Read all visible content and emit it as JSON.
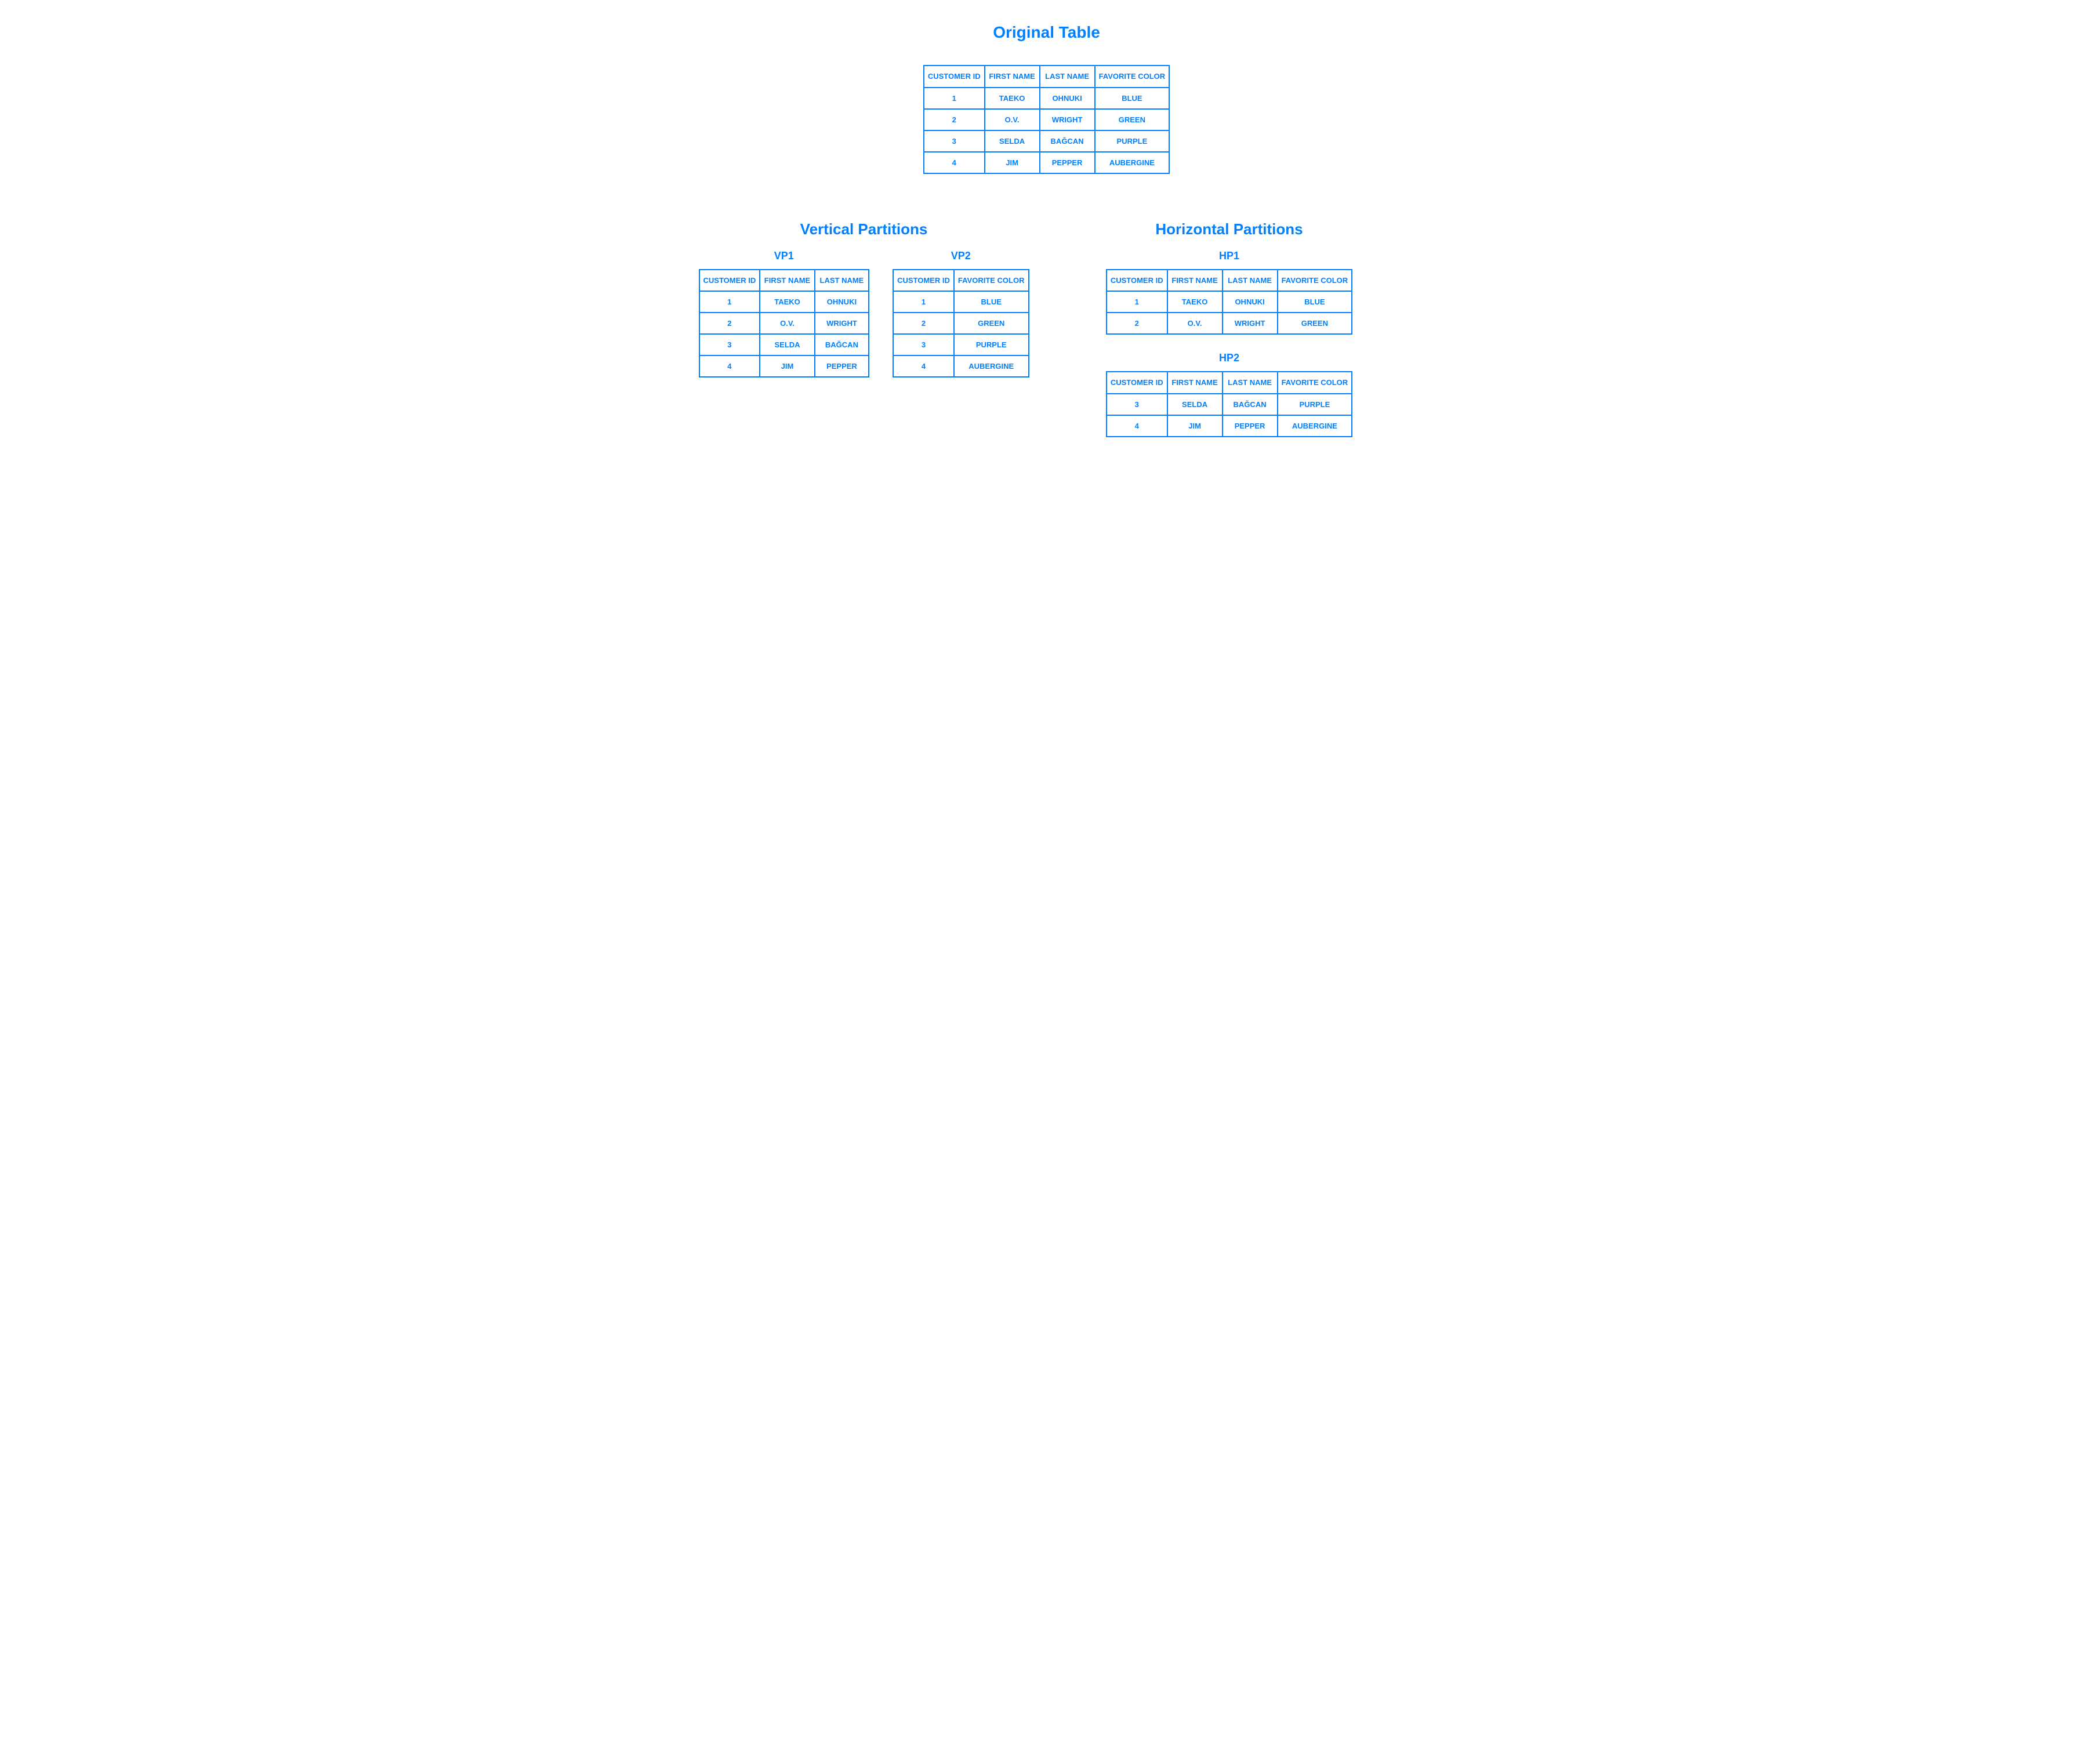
{
  "colors": {
    "accent": "#0080ff",
    "background": "#ffffff",
    "border": "#0080ff",
    "text": "#0080ff"
  },
  "typography": {
    "font_family": "Arial, Helvetica, sans-serif",
    "h1_fontsize": 28,
    "h2_fontsize": 26,
    "h3_fontsize": 18,
    "cell_fontsize": 13,
    "weight": "bold"
  },
  "layout": {
    "border_width": 2,
    "cell_padding": "8px 6px"
  },
  "titles": {
    "original": "Original Table",
    "vertical": "Vertical Partitions",
    "horizontal": "Horizontal Partitions",
    "vp1": "VP1",
    "vp2": "VP2",
    "hp1": "HP1",
    "hp2": "HP2"
  },
  "columns": {
    "customer_id": "CUSTOMER ID",
    "first_name": "FIRST NAME",
    "last_name": "LAST NAME",
    "favorite_color": "FAVORITE COLOR"
  },
  "original_table": {
    "type": "table",
    "columns": [
      "CUSTOMER ID",
      "FIRST NAME",
      "LAST NAME",
      "FAVORITE COLOR"
    ],
    "rows": [
      [
        "1",
        "TAEKO",
        "OHNUKI",
        "BLUE"
      ],
      [
        "2",
        "O.V.",
        "WRIGHT",
        "GREEN"
      ],
      [
        "3",
        "SELDA",
        "BAĞCAN",
        "PURPLE"
      ],
      [
        "4",
        "JIM",
        "PEPPER",
        "AUBERGINE"
      ]
    ]
  },
  "vp1": {
    "type": "table",
    "columns": [
      "CUSTOMER ID",
      "FIRST NAME",
      "LAST NAME"
    ],
    "rows": [
      [
        "1",
        "TAEKO",
        "OHNUKI"
      ],
      [
        "2",
        "O.V.",
        "WRIGHT"
      ],
      [
        "3",
        "SELDA",
        "BAĞCAN"
      ],
      [
        "4",
        "JIM",
        "PEPPER"
      ]
    ]
  },
  "vp2": {
    "type": "table",
    "columns": [
      "CUSTOMER ID",
      "FAVORITE COLOR"
    ],
    "rows": [
      [
        "1",
        "BLUE"
      ],
      [
        "2",
        "GREEN"
      ],
      [
        "3",
        "PURPLE"
      ],
      [
        "4",
        "AUBERGINE"
      ]
    ]
  },
  "hp1": {
    "type": "table",
    "columns": [
      "CUSTOMER ID",
      "FIRST NAME",
      "LAST NAME",
      "FAVORITE COLOR"
    ],
    "rows": [
      [
        "1",
        "TAEKO",
        "OHNUKI",
        "BLUE"
      ],
      [
        "2",
        "O.V.",
        "WRIGHT",
        "GREEN"
      ]
    ]
  },
  "hp2": {
    "type": "table",
    "columns": [
      "CUSTOMER ID",
      "FIRST NAME",
      "LAST NAME",
      "FAVORITE COLOR"
    ],
    "rows": [
      [
        "3",
        "SELDA",
        "BAĞCAN",
        "PURPLE"
      ],
      [
        "4",
        "JIM",
        "PEPPER",
        "AUBERGINE"
      ]
    ]
  }
}
